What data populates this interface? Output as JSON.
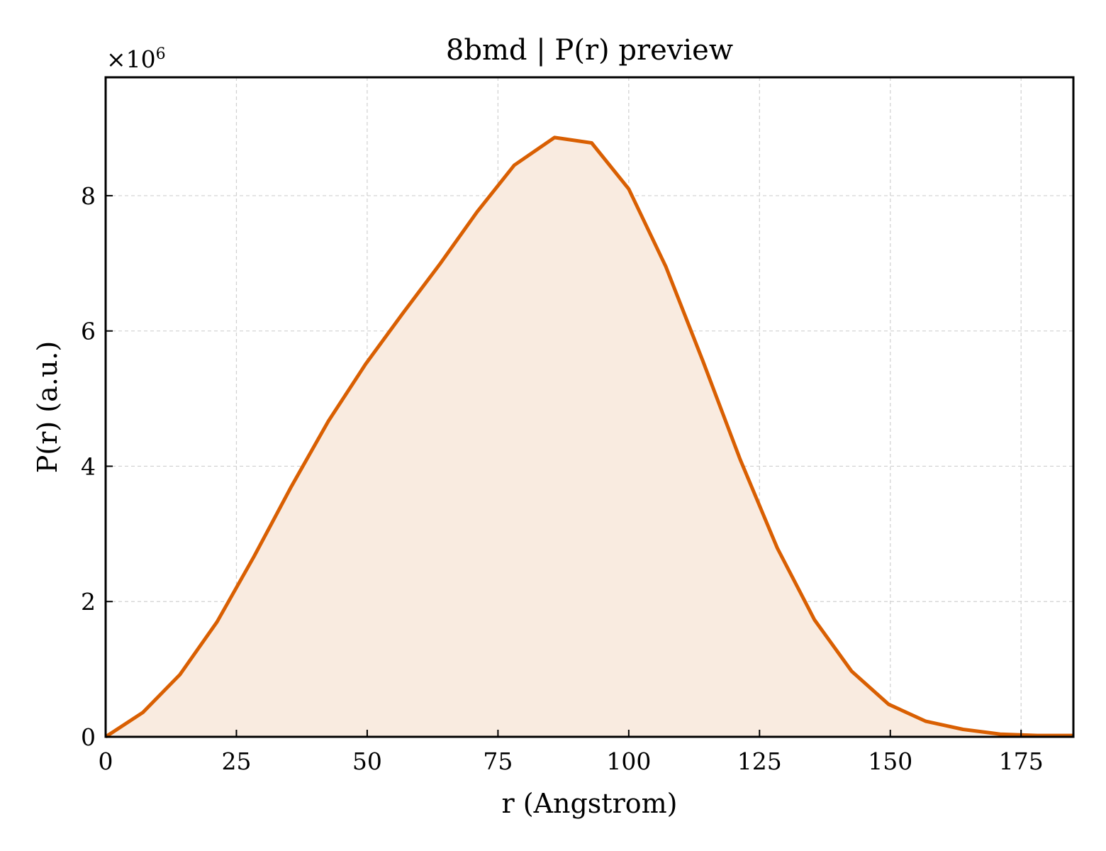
{
  "chart_data": {
    "type": "area",
    "title": "8bmd | P(r) preview",
    "xlabel": "r (Angstrom)",
    "ylabel": "P(r) (a.u.)",
    "y_multiplier_base": "×10",
    "y_multiplier_exponent": "6",
    "xlim": [
      0,
      185
    ],
    "ylim": [
      0,
      9.75
    ],
    "grid": true,
    "line_color": "#d95f02",
    "fill_color": "#f9ebe0",
    "x_ticks": [
      0,
      25,
      50,
      75,
      100,
      125,
      150,
      175
    ],
    "x_tick_labels": [
      "0",
      "25",
      "50",
      "75",
      "100",
      "125",
      "150",
      "175"
    ],
    "y_ticks": [
      0,
      2,
      4,
      6,
      8
    ],
    "y_tick_labels": [
      "0",
      "2",
      "4",
      "6",
      "8"
    ],
    "series": [
      {
        "x": [
          0,
          7.1,
          14.2,
          21.3,
          28.4,
          35.5,
          42.6,
          49.7,
          56.8,
          63.9,
          71.0,
          78.1,
          85.8,
          92.9,
          100.0,
          107.1,
          114.2,
          121.3,
          128.4,
          135.5,
          142.6,
          149.7,
          156.8,
          163.9,
          171.0,
          178.1,
          185.0
        ],
        "y": [
          0.0,
          0.36,
          0.92,
          1.7,
          2.67,
          3.7,
          4.67,
          5.51,
          6.26,
          6.99,
          7.76,
          8.45,
          8.86,
          8.78,
          8.1,
          6.95,
          5.55,
          4.1,
          2.79,
          1.73,
          0.97,
          0.48,
          0.23,
          0.11,
          0.04,
          0.02,
          0.02
        ]
      }
    ]
  }
}
